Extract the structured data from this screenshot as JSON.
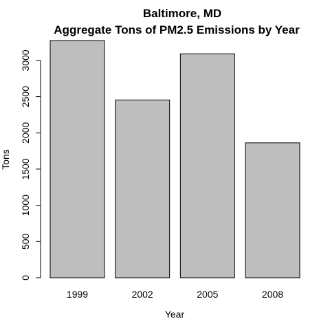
{
  "chart_data": {
    "type": "bar",
    "title": "Baltimore, MD",
    "subtitle": "Aggregate Tons of PM2.5 Emissions by Year",
    "xlabel": "Year",
    "ylabel": "Tons",
    "categories": [
      "1999",
      "2002",
      "2005",
      "2008"
    ],
    "values": [
      3274,
      2454,
      3091,
      1862
    ],
    "ylim": [
      0,
      3274
    ],
    "yticks": [
      0,
      500,
      1000,
      1500,
      2000,
      2500,
      3000
    ],
    "grid": false,
    "colors": {
      "bar_fill": "#bebebe",
      "bar_stroke": "#000000"
    }
  }
}
